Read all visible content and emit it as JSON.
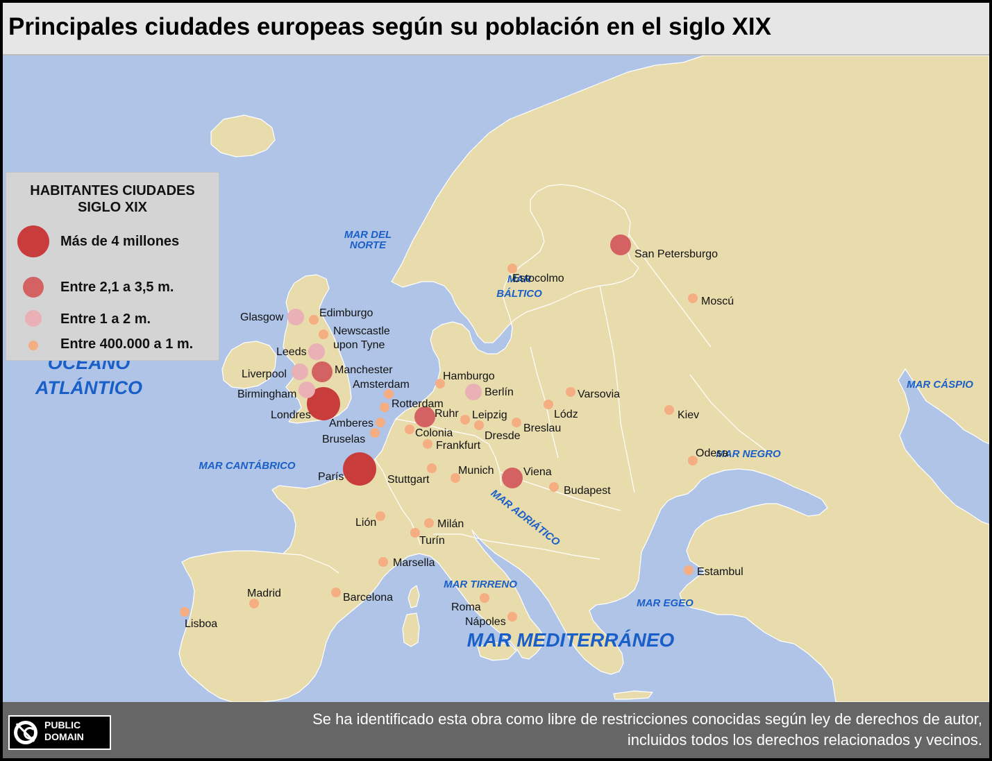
{
  "title": "Principales ciudades europeas según su población en el siglo XIX",
  "legend": {
    "title_line1": "HABITANTES CIUDADES",
    "title_line2": "SIGLO  XIX",
    "items": [
      {
        "label": "Más de 4 millones",
        "color": "#c83c3c",
        "size_class": "xl"
      },
      {
        "label": "Entre 2,1 a 3,5 m.",
        "color": "#d46262",
        "size_class": "l"
      },
      {
        "label": "Entre 1 a 2 m.",
        "color": "#e9b0b6",
        "size_class": "m"
      },
      {
        "label": "Entre 400.000 a 1 m.",
        "color": "#f5ad82",
        "size_class": "s"
      }
    ]
  },
  "seas": [
    {
      "name": "OCEÁNO",
      "style": "big"
    },
    {
      "name": "ATLÁNTICO",
      "style": "big"
    },
    {
      "name": "MAR DEL",
      "style": "small"
    },
    {
      "name": "NORTE",
      "style": "small"
    },
    {
      "name": "MAR",
      "style": "small"
    },
    {
      "name": "BÁLTICO",
      "style": "small"
    },
    {
      "name": "MAR CÁSPIO",
      "style": "small"
    },
    {
      "name": "MAR NEGRO",
      "style": "small"
    },
    {
      "name": "MAR CANTÁBRICO",
      "style": "small"
    },
    {
      "name": "MAR ADRIÁTICO",
      "style": "small"
    },
    {
      "name": "MAR TIRRENO",
      "style": "small"
    },
    {
      "name": "MAR EGEO",
      "style": "small"
    },
    {
      "name": "MAR MEDITERRÁNEO",
      "style": "huge"
    }
  ],
  "cities": [
    {
      "name": "Londres",
      "category": 1
    },
    {
      "name": "París",
      "category": 1
    },
    {
      "name": "San Petersburgo",
      "category": 2
    },
    {
      "name": "Manchester",
      "category": 2
    },
    {
      "name": "Ruhr",
      "category": 2
    },
    {
      "name": "Viena",
      "category": 2
    },
    {
      "name": "Glasgow",
      "category": 3
    },
    {
      "name": "Leeds",
      "category": 3
    },
    {
      "name": "Liverpool",
      "category": 3
    },
    {
      "name": "Birmingham",
      "category": 3
    },
    {
      "name": "Berlín",
      "category": 3
    },
    {
      "name": "Edimburgo",
      "category": 4
    },
    {
      "name": "Newscastle",
      "category": 4
    },
    {
      "name": "upon Tyne",
      "category": 0
    },
    {
      "name": "Amsterdam",
      "category": 4
    },
    {
      "name": "Rotterdam",
      "category": 4
    },
    {
      "name": "Amberes",
      "category": 4
    },
    {
      "name": "Bruselas",
      "category": 4
    },
    {
      "name": "Hamburgo",
      "category": 4
    },
    {
      "name": "Colonia",
      "category": 4
    },
    {
      "name": "Frankfurt",
      "category": 4
    },
    {
      "name": "Leipzig",
      "category": 4
    },
    {
      "name": "Dresde",
      "category": 4
    },
    {
      "name": "Breslau",
      "category": 4
    },
    {
      "name": "Varsovia",
      "category": 4
    },
    {
      "name": "Lódz",
      "category": 4
    },
    {
      "name": "Kiev",
      "category": 4
    },
    {
      "name": "Odesa",
      "category": 4
    },
    {
      "name": "Moscú",
      "category": 4
    },
    {
      "name": "Estocolmo",
      "category": 4
    },
    {
      "name": "Stuttgart",
      "category": 4
    },
    {
      "name": "Munich",
      "category": 4
    },
    {
      "name": "Budapest",
      "category": 4
    },
    {
      "name": "Lión",
      "category": 4
    },
    {
      "name": "Milán",
      "category": 4
    },
    {
      "name": "Turín",
      "category": 4
    },
    {
      "name": "Marsella",
      "category": 4
    },
    {
      "name": "Barcelona",
      "category": 4
    },
    {
      "name": "Madrid",
      "category": 4
    },
    {
      "name": "Lisboa",
      "category": 4
    },
    {
      "name": "Roma",
      "category": 4
    },
    {
      "name": "Nápoles",
      "category": 4
    },
    {
      "name": "Estambul",
      "category": 4
    }
  ],
  "colors": {
    "sea": "#afc4e6",
    "land": "#e8dcad",
    "border": "#ffffff",
    "sea_text": "#1a5fc8"
  },
  "footer": {
    "badge_line1": "PUBLIC",
    "badge_line2": "DOMAIN",
    "license_line1": "Se ha identificado esta obra como libre de restricciones conocidas según ley de derechos de autor,",
    "license_line2": "incluidos todos los derechos relacionados y vecinos."
  }
}
